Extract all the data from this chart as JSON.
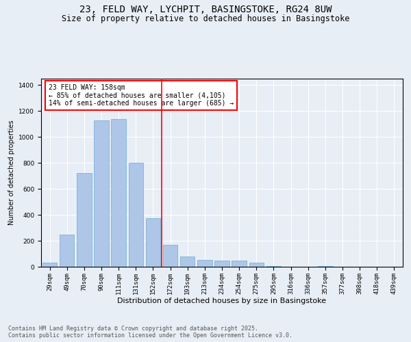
{
  "title_line1": "23, FELD WAY, LYCHPIT, BASINGSTOKE, RG24 8UW",
  "title_line2": "Size of property relative to detached houses in Basingstoke",
  "xlabel": "Distribution of detached houses by size in Basingstoke",
  "ylabel": "Number of detached properties",
  "categories": [
    "29sqm",
    "49sqm",
    "70sqm",
    "90sqm",
    "111sqm",
    "131sqm",
    "152sqm",
    "172sqm",
    "193sqm",
    "213sqm",
    "234sqm",
    "254sqm",
    "275sqm",
    "295sqm",
    "316sqm",
    "336sqm",
    "357sqm",
    "377sqm",
    "398sqm",
    "418sqm",
    "439sqm"
  ],
  "bar_heights": [
    30,
    250,
    720,
    1130,
    1140,
    800,
    375,
    170,
    80,
    55,
    50,
    50,
    30,
    5,
    0,
    0,
    5,
    0,
    0,
    0,
    0
  ],
  "bar_color": "#aec6e8",
  "bar_edge_color": "#6aaad4",
  "vline_color": "red",
  "annotation_text": "23 FELD WAY: 158sqm\n← 85% of detached houses are smaller (4,105)\n14% of semi-detached houses are larger (685) →",
  "annotation_box_color": "red",
  "ylim": [
    0,
    1450
  ],
  "yticks": [
    0,
    200,
    400,
    600,
    800,
    1000,
    1200,
    1400
  ],
  "bg_color": "#e8eef5",
  "plot_bg_color": "#e8eef5",
  "footer_text": "Contains HM Land Registry data © Crown copyright and database right 2025.\nContains public sector information licensed under the Open Government Licence v3.0.",
  "title_fontsize": 10,
  "subtitle_fontsize": 8.5,
  "annotation_fontsize": 7,
  "footer_fontsize": 6,
  "ylabel_fontsize": 7,
  "xlabel_fontsize": 8,
  "tick_fontsize": 6.5
}
